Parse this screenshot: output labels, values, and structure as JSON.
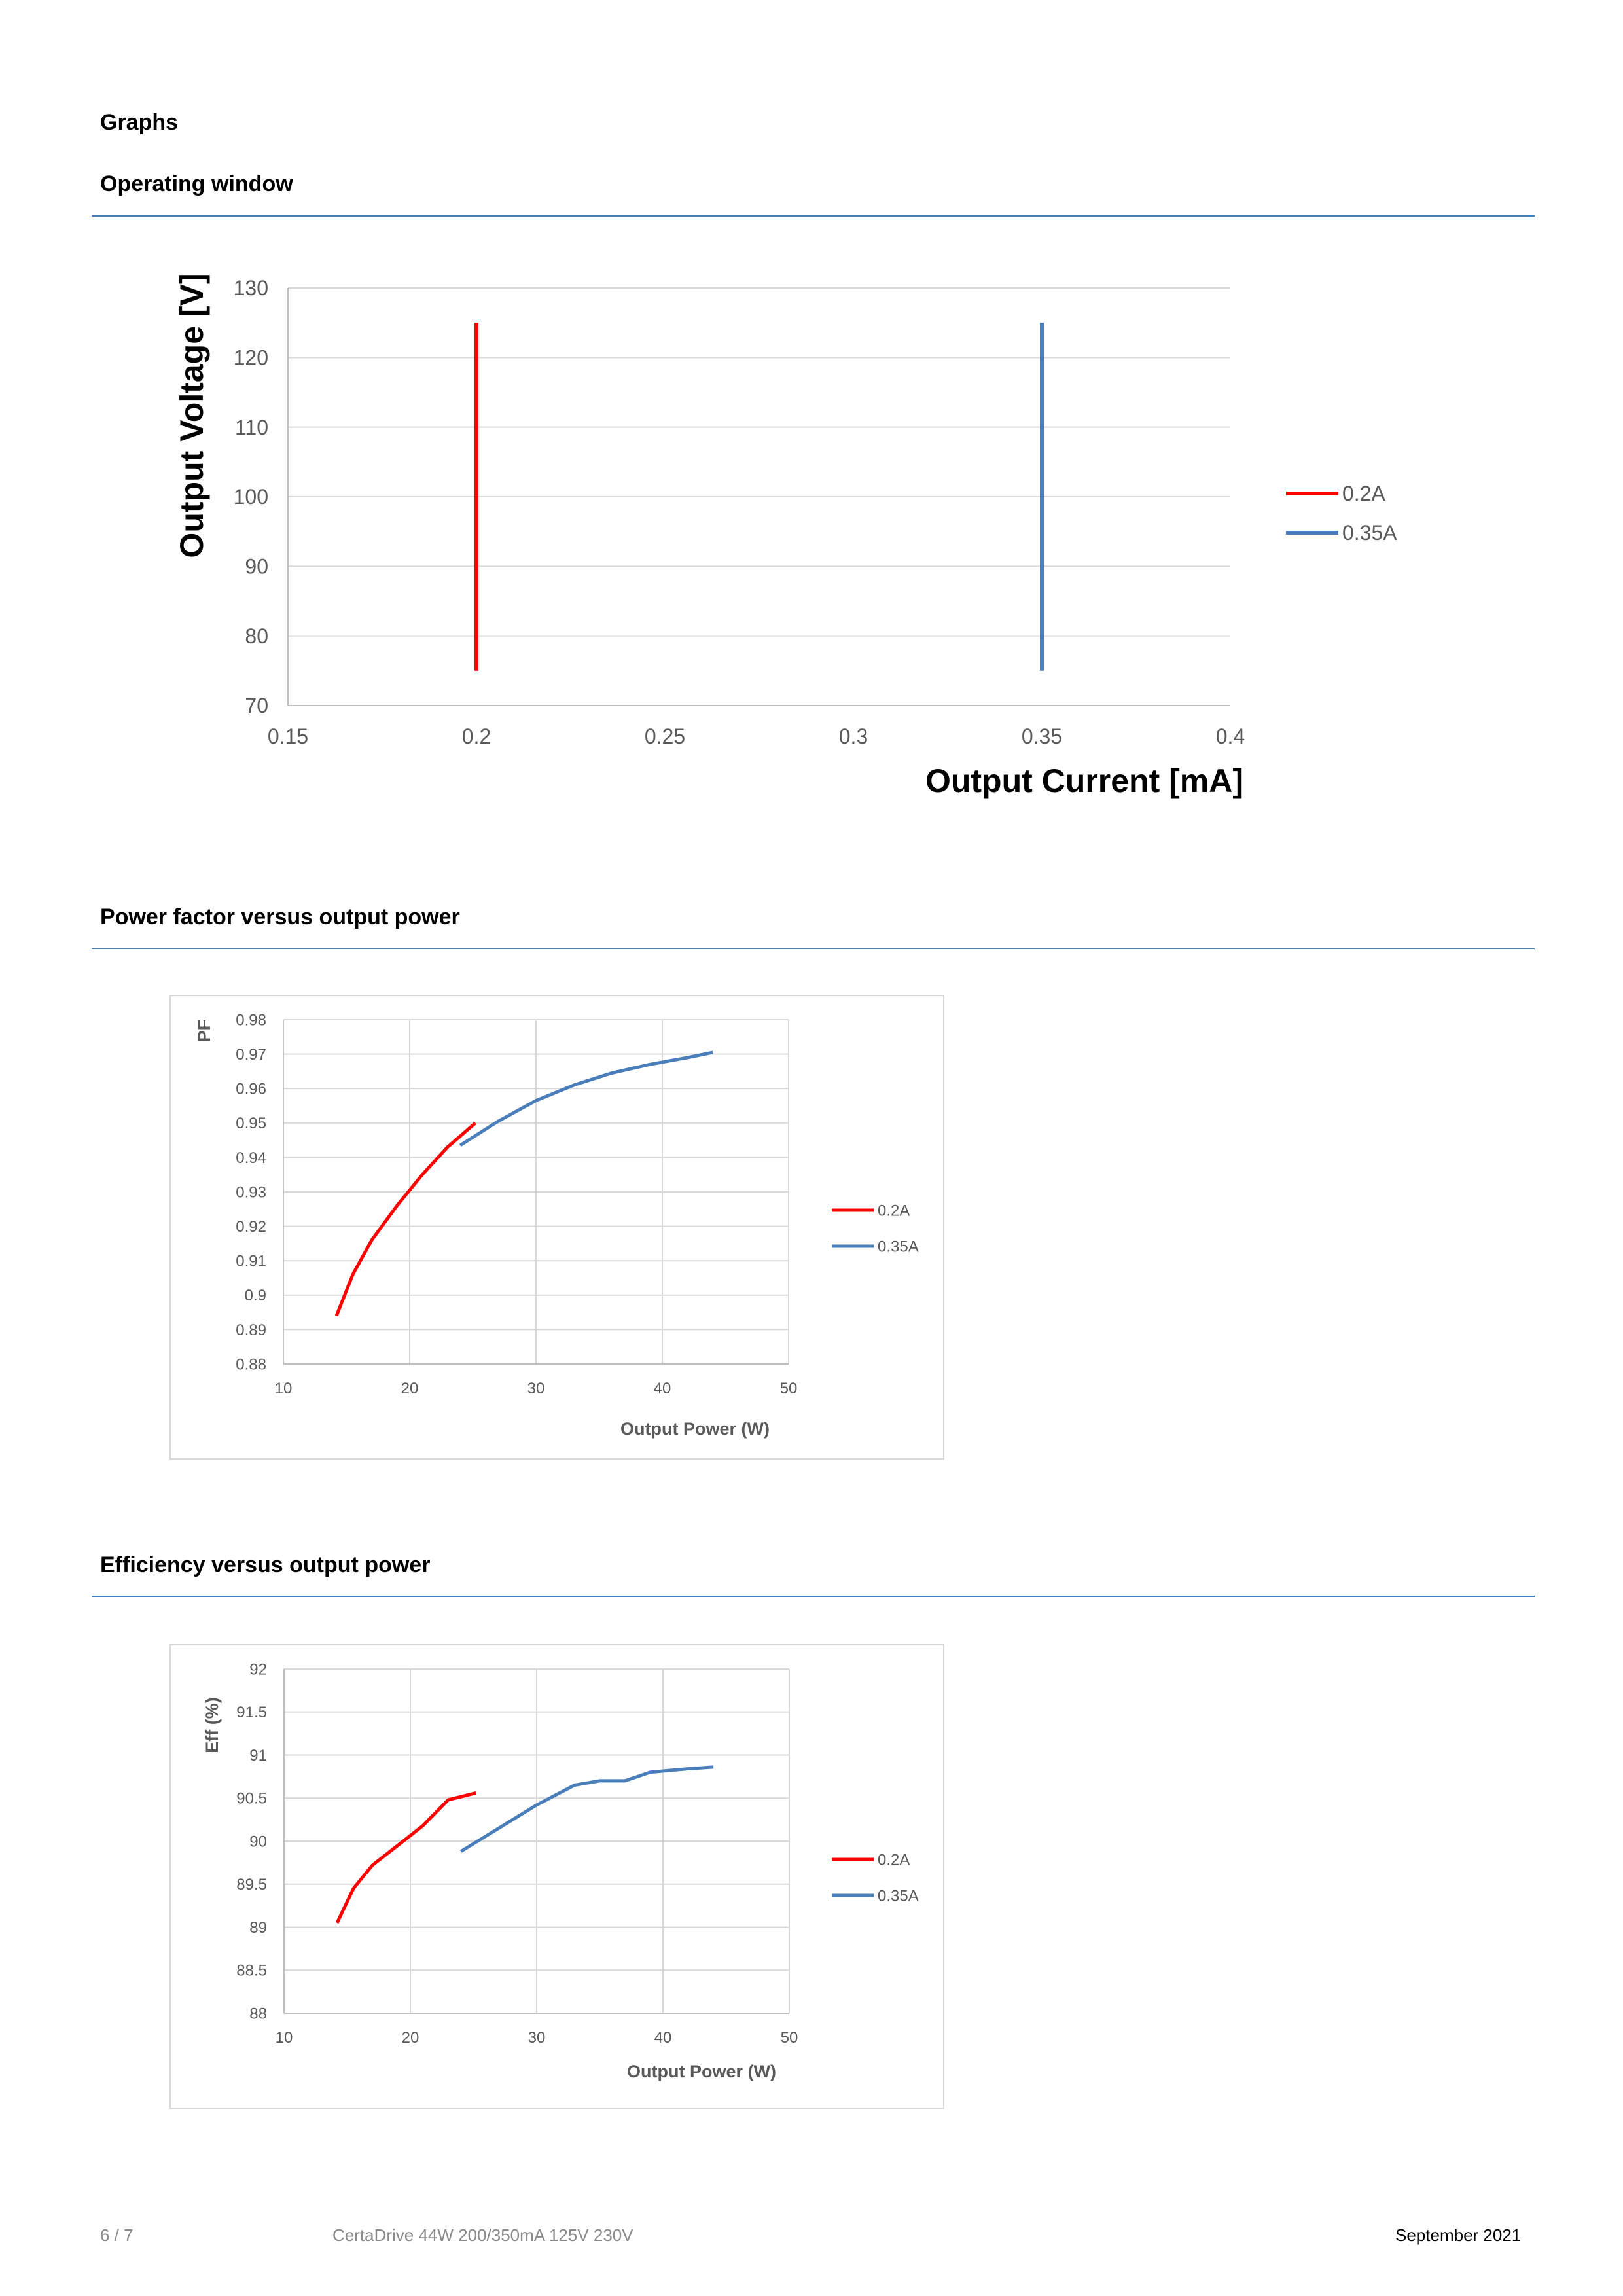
{
  "page": {
    "section_title": "Graphs",
    "headings": {
      "operating_window": "Operating window",
      "power_factor": "Power factor versus output power",
      "efficiency": "Efficiency versus output power"
    },
    "footer": {
      "page_number": "6 / 7",
      "product": "CertaDrive 44W 200/350mA 125V 230V",
      "date": "September 2021"
    }
  },
  "colors": {
    "series_0_2A": "#ff0000",
    "series_0_35A": "#4a7ebb",
    "rule": "#4a7ebb",
    "grid": "#d9d9d9"
  },
  "chart_data": [
    {
      "type": "line",
      "xlabel": "Output Current [mA]",
      "ylabel": "Output Voltage [V]",
      "xlim": [
        0.15,
        0.4
      ],
      "ylim": [
        70,
        130
      ],
      "xticks": [
        "0.15",
        "0.2",
        "0.25",
        "0.3",
        "0.35",
        "0.4"
      ],
      "yticks": [
        "70",
        "80",
        "90",
        "100",
        "110",
        "120",
        "130"
      ],
      "grid": "horizontal",
      "legend": "right",
      "series": [
        {
          "name": "0.2A",
          "x": [
            0.2,
            0.2
          ],
          "y": [
            75,
            125
          ]
        },
        {
          "name": "0.35A",
          "x": [
            0.35,
            0.35
          ],
          "y": [
            75,
            125
          ]
        }
      ]
    },
    {
      "type": "line",
      "xlabel": "Output Power (W)",
      "ylabel": "PF",
      "xlim": [
        10,
        50
      ],
      "ylim": [
        0.88,
        0.98
      ],
      "xticks": [
        "10",
        "20",
        "30",
        "40",
        "50"
      ],
      "yticks": [
        "0.88",
        "0.89",
        "0.9",
        "0.91",
        "0.92",
        "0.93",
        "0.94",
        "0.95",
        "0.96",
        "0.97",
        "0.98"
      ],
      "grid": "both",
      "legend": "right",
      "series": [
        {
          "name": "0.2A",
          "x": [
            14.2,
            15.5,
            17,
            19,
            21,
            23,
            25.2
          ],
          "y": [
            0.894,
            0.906,
            0.916,
            0.926,
            0.935,
            0.943,
            0.95
          ]
        },
        {
          "name": "0.35A",
          "x": [
            24,
            27,
            30,
            33,
            36,
            39,
            42,
            44
          ],
          "y": [
            0.9435,
            0.9505,
            0.9565,
            0.961,
            0.9645,
            0.967,
            0.969,
            0.9705
          ]
        }
      ]
    },
    {
      "type": "line",
      "xlabel": "Output Power (W)",
      "ylabel": "Eff (%)",
      "xlim": [
        10,
        50
      ],
      "ylim": [
        88,
        92
      ],
      "xticks": [
        "10",
        "20",
        "30",
        "40",
        "50"
      ],
      "yticks": [
        "88",
        "88.5",
        "89",
        "89.5",
        "90",
        "90.5",
        "91",
        "91.5",
        "92"
      ],
      "grid": "both",
      "legend": "right",
      "series": [
        {
          "name": "0.2A",
          "x": [
            14.2,
            15.5,
            17,
            19,
            21,
            23,
            25.2
          ],
          "y": [
            89.05,
            89.45,
            89.72,
            89.95,
            90.18,
            90.48,
            90.56
          ]
        },
        {
          "name": "0.35A",
          "x": [
            24,
            27,
            30,
            33,
            35,
            37,
            39,
            42,
            44
          ],
          "y": [
            89.88,
            90.15,
            90.42,
            90.65,
            90.7,
            90.7,
            90.8,
            90.84,
            90.86
          ]
        }
      ]
    }
  ]
}
